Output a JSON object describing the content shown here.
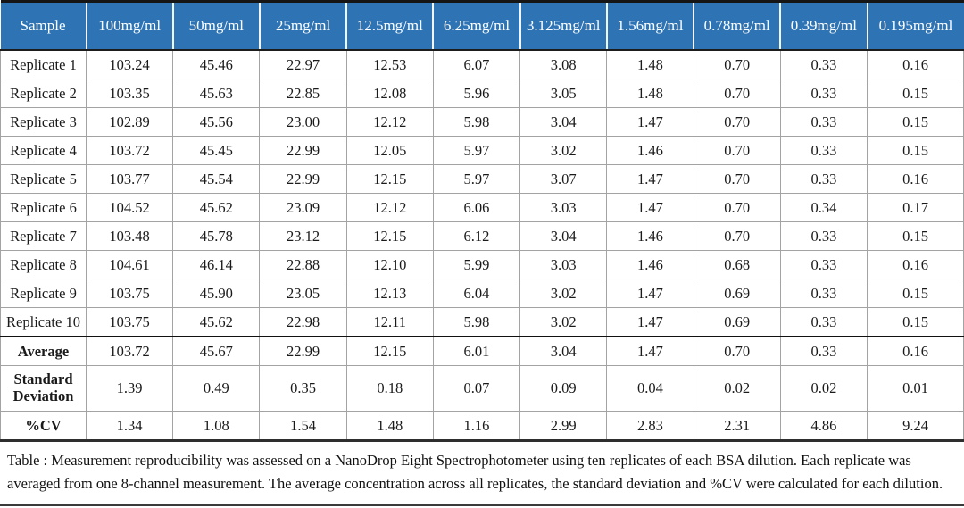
{
  "table": {
    "columns": [
      "Sample",
      "100mg/ml",
      "50mg/ml",
      "25mg/ml",
      "12.5mg/ml",
      "6.25mg/ml",
      "3.125mg/ml",
      "1.56mg/ml",
      "0.78mg/ml",
      "0.39mg/ml",
      "0.195mg/ml"
    ],
    "rows": [
      {
        "label": "Replicate 1",
        "values": [
          "103.24",
          "45.46",
          "22.97",
          "12.53",
          "6.07",
          "3.08",
          "1.48",
          "0.70",
          "0.33",
          "0.16"
        ]
      },
      {
        "label": "Replicate 2",
        "values": [
          "103.35",
          "45.63",
          "22.85",
          "12.08",
          "5.96",
          "3.05",
          "1.48",
          "0.70",
          "0.33",
          "0.15"
        ]
      },
      {
        "label": "Replicate 3",
        "values": [
          "102.89",
          "45.56",
          "23.00",
          "12.12",
          "5.98",
          "3.04",
          "1.47",
          "0.70",
          "0.33",
          "0.15"
        ]
      },
      {
        "label": "Replicate 4",
        "values": [
          "103.72",
          "45.45",
          "22.99",
          "12.05",
          "5.97",
          "3.02",
          "1.46",
          "0.70",
          "0.33",
          "0.15"
        ]
      },
      {
        "label": "Replicate 5",
        "values": [
          "103.77",
          "45.54",
          "22.99",
          "12.15",
          "5.97",
          "3.07",
          "1.47",
          "0.70",
          "0.33",
          "0.16"
        ]
      },
      {
        "label": "Replicate 6",
        "values": [
          "104.52",
          "45.62",
          "23.09",
          "12.12",
          "6.06",
          "3.03",
          "1.47",
          "0.70",
          "0.34",
          "0.17"
        ]
      },
      {
        "label": "Replicate 7",
        "values": [
          "103.48",
          "45.78",
          "23.12",
          "12.15",
          "6.12",
          "3.04",
          "1.46",
          "0.70",
          "0.33",
          "0.15"
        ]
      },
      {
        "label": "Replicate 8",
        "values": [
          "104.61",
          "46.14",
          "22.88",
          "12.10",
          "5.99",
          "3.03",
          "1.46",
          "0.68",
          "0.33",
          "0.16"
        ]
      },
      {
        "label": "Replicate 9",
        "values": [
          "103.75",
          "45.90",
          "23.05",
          "12.13",
          "6.04",
          "3.02",
          "1.47",
          "0.69",
          "0.33",
          "0.15"
        ]
      },
      {
        "label": "Replicate 10",
        "values": [
          "103.75",
          "45.62",
          "22.98",
          "12.11",
          "5.98",
          "3.02",
          "1.47",
          "0.69",
          "0.33",
          "0.15"
        ]
      },
      {
        "label": "Average",
        "emphasis": true,
        "section_break": true,
        "values": [
          "103.72",
          "45.67",
          "22.99",
          "12.15",
          "6.01",
          "3.04",
          "1.47",
          "0.70",
          "0.33",
          "0.16"
        ]
      },
      {
        "label": "Standard Deviation",
        "emphasis": true,
        "tall": true,
        "values": [
          "1.39",
          "0.49",
          "0.35",
          "0.18",
          "0.07",
          "0.09",
          "0.04",
          "0.02",
          "0.02",
          "0.01"
        ]
      },
      {
        "label": "%CV",
        "emphasis": true,
        "values": [
          "1.34",
          "1.08",
          "1.54",
          "1.48",
          "1.16",
          "2.99",
          "2.83",
          "2.31",
          "4.86",
          "9.24"
        ]
      }
    ]
  },
  "caption": {
    "text": "Table :  Measurement reproducibility was assessed on a NanoDrop Eight Spectrophotometer using ten replicates of each BSA dilution. Each replicate was averaged from one 8-channel measurement. The average concentration across all replicates, the standard deviation and %CV were calculated for each dilution."
  },
  "colors": {
    "header_background": "#2e74b5",
    "header_text": "#ffffff",
    "grid_line": "#a3a3a3",
    "heavy_rule": "#151515"
  }
}
